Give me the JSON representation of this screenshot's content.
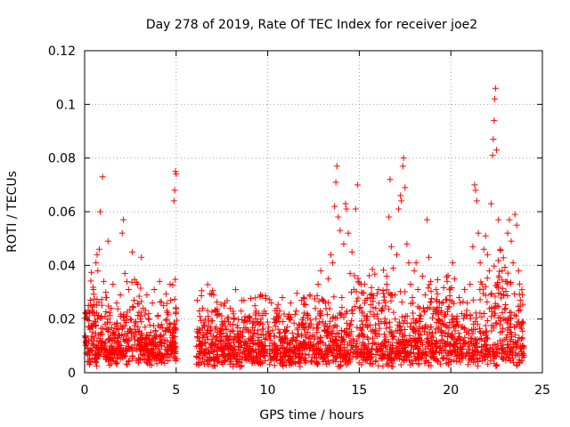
{
  "chart_data": {
    "type": "scatter",
    "title": "Day 278 of 2019, Rate Of TEC Index for receiver joe2",
    "xlabel": "GPS time / hours",
    "ylabel": "ROTI / TECUs",
    "xlim": [
      0,
      25
    ],
    "ylim": [
      0,
      0.12
    ],
    "x_ticks": [
      0,
      5,
      10,
      15,
      20,
      25
    ],
    "x_tick_labels": [
      "0",
      "5",
      "10",
      "15",
      "20",
      "25"
    ],
    "y_ticks": [
      0,
      0.02,
      0.04,
      0.06,
      0.08,
      0.1,
      0.12
    ],
    "y_tick_labels": [
      "0",
      "0.02",
      "0.04",
      "0.06",
      "0.08",
      "0.1",
      "0.12"
    ],
    "grid": true,
    "marker": "+",
    "marker_color": "#ff0000",
    "data_gap_hours": [
      5.05,
      6.1
    ],
    "series": [
      {
        "name": "ROTI",
        "points": [
          [
            0.05,
            0.013
          ],
          [
            0.1,
            0.022
          ],
          [
            0.18,
            0.009
          ],
          [
            0.25,
            0.017
          ],
          [
            0.32,
            0.027
          ],
          [
            0.4,
            0.011
          ],
          [
            0.48,
            0.031
          ],
          [
            0.55,
            0.019
          ],
          [
            0.62,
            0.041
          ],
          [
            0.68,
            0.044
          ],
          [
            0.72,
            0.038
          ],
          [
            0.8,
            0.046
          ],
          [
            0.85,
            0.06
          ],
          [
            0.9,
            0.015
          ],
          [
            0.98,
            0.073
          ],
          [
            1.05,
            0.034
          ],
          [
            1.12,
            0.021
          ],
          [
            1.2,
            0.028
          ],
          [
            1.28,
            0.049
          ],
          [
            1.35,
            0.012
          ],
          [
            1.45,
            0.024
          ],
          [
            1.55,
            0.033
          ],
          [
            1.65,
            0.018
          ],
          [
            1.75,
            0.026
          ],
          [
            1.85,
            0.014
          ],
          [
            1.95,
            0.029
          ],
          [
            2.05,
            0.052
          ],
          [
            2.12,
            0.057
          ],
          [
            2.2,
            0.037
          ],
          [
            2.3,
            0.021
          ],
          [
            2.4,
            0.031
          ],
          [
            2.5,
            0.016
          ],
          [
            2.6,
            0.045
          ],
          [
            2.7,
            0.027
          ],
          [
            2.8,
            0.019
          ],
          [
            2.9,
            0.033
          ],
          [
            3.0,
            0.012
          ],
          [
            3.1,
            0.043
          ],
          [
            3.2,
            0.024
          ],
          [
            3.3,
            0.017
          ],
          [
            3.4,
            0.029
          ],
          [
            3.5,
            0.022
          ],
          [
            3.6,
            0.011
          ],
          [
            3.7,
            0.026
          ],
          [
            3.8,
            0.031
          ],
          [
            3.9,
            0.014
          ],
          [
            4.0,
            0.021
          ],
          [
            4.1,
            0.034
          ],
          [
            4.2,
            0.018
          ],
          [
            4.3,
            0.025
          ],
          [
            4.4,
            0.012
          ],
          [
            4.5,
            0.023
          ],
          [
            4.6,
            0.016
          ],
          [
            4.7,
            0.027
          ],
          [
            4.8,
            0.008
          ],
          [
            4.88,
            0.064
          ],
          [
            4.92,
            0.068
          ],
          [
            4.96,
            0.075
          ],
          [
            5.0,
            0.074
          ],
          [
            6.15,
            0.027
          ],
          [
            6.3,
            0.015
          ],
          [
            6.45,
            0.024
          ],
          [
            6.6,
            0.011
          ],
          [
            6.75,
            0.021
          ],
          [
            6.9,
            0.017
          ],
          [
            7.05,
            0.029
          ],
          [
            7.2,
            0.013
          ],
          [
            7.35,
            0.022
          ],
          [
            7.5,
            0.019
          ],
          [
            7.65,
            0.026
          ],
          [
            7.8,
            0.012
          ],
          [
            7.95,
            0.024
          ],
          [
            8.1,
            0.018
          ],
          [
            8.25,
            0.031
          ],
          [
            8.4,
            0.014
          ],
          [
            8.55,
            0.023
          ],
          [
            8.7,
            0.027
          ],
          [
            8.85,
            0.016
          ],
          [
            9.0,
            0.021
          ],
          [
            9.15,
            0.012
          ],
          [
            9.3,
            0.025
          ],
          [
            9.45,
            0.019
          ],
          [
            9.6,
            0.029
          ],
          [
            9.75,
            0.014
          ],
          [
            9.9,
            0.022
          ],
          [
            10.05,
            0.017
          ],
          [
            10.2,
            0.026
          ],
          [
            10.35,
            0.011
          ],
          [
            10.5,
            0.024
          ],
          [
            10.65,
            0.019
          ],
          [
            10.8,
            0.028
          ],
          [
            10.95,
            0.015
          ],
          [
            11.1,
            0.021
          ],
          [
            11.25,
            0.026
          ],
          [
            11.4,
            0.013
          ],
          [
            11.55,
            0.023
          ],
          [
            11.7,
            0.018
          ],
          [
            11.85,
            0.027
          ],
          [
            12.0,
            0.016
          ],
          [
            12.15,
            0.022
          ],
          [
            12.3,
            0.029
          ],
          [
            12.45,
            0.014
          ],
          [
            12.6,
            0.024
          ],
          [
            12.75,
            0.033
          ],
          [
            12.9,
            0.038
          ],
          [
            13.0,
            0.019
          ],
          [
            13.15,
            0.026
          ],
          [
            13.3,
            0.035
          ],
          [
            13.45,
            0.044
          ],
          [
            13.55,
            0.041
          ],
          [
            13.65,
            0.062
          ],
          [
            13.72,
            0.071
          ],
          [
            13.78,
            0.077
          ],
          [
            13.85,
            0.058
          ],
          [
            13.95,
            0.053
          ],
          [
            14.05,
            0.028
          ],
          [
            14.15,
            0.048
          ],
          [
            14.25,
            0.063
          ],
          [
            14.3,
            0.061
          ],
          [
            14.4,
            0.052
          ],
          [
            14.5,
            0.037
          ],
          [
            14.6,
            0.045
          ],
          [
            14.7,
            0.031
          ],
          [
            14.8,
            0.061
          ],
          [
            14.9,
            0.07
          ],
          [
            15.0,
            0.024
          ],
          [
            15.1,
            0.033
          ],
          [
            15.2,
            0.017
          ],
          [
            15.3,
            0.026
          ],
          [
            15.45,
            0.021
          ],
          [
            15.6,
            0.029
          ],
          [
            15.75,
            0.016
          ],
          [
            15.9,
            0.024
          ],
          [
            16.05,
            0.031
          ],
          [
            16.2,
            0.019
          ],
          [
            16.35,
            0.027
          ],
          [
            16.5,
            0.036
          ],
          [
            16.62,
            0.058
          ],
          [
            16.68,
            0.072
          ],
          [
            16.75,
            0.047
          ],
          [
            16.85,
            0.039
          ],
          [
            16.95,
            0.029
          ],
          [
            17.05,
            0.044
          ],
          [
            17.15,
            0.061
          ],
          [
            17.25,
            0.066
          ],
          [
            17.3,
            0.064
          ],
          [
            17.38,
            0.077
          ],
          [
            17.42,
            0.08
          ],
          [
            17.5,
            0.069
          ],
          [
            17.6,
            0.048
          ],
          [
            17.7,
            0.041
          ],
          [
            17.8,
            0.033
          ],
          [
            17.9,
            0.028
          ],
          [
            18.0,
            0.038
          ],
          [
            18.1,
            0.041
          ],
          [
            18.2,
            0.031
          ],
          [
            18.3,
            0.024
          ],
          [
            18.45,
            0.036
          ],
          [
            18.6,
            0.029
          ],
          [
            18.7,
            0.057
          ],
          [
            18.8,
            0.043
          ],
          [
            18.9,
            0.034
          ],
          [
            19.05,
            0.022
          ],
          [
            19.2,
            0.031
          ],
          [
            19.35,
            0.017
          ],
          [
            19.5,
            0.026
          ],
          [
            19.65,
            0.021
          ],
          [
            19.8,
            0.034
          ],
          [
            19.95,
            0.027
          ],
          [
            20.1,
            0.041
          ],
          [
            20.2,
            0.035
          ],
          [
            20.3,
            0.019
          ],
          [
            20.45,
            0.028
          ],
          [
            20.6,
            0.022
          ],
          [
            20.75,
            0.031
          ],
          [
            20.9,
            0.026
          ],
          [
            21.05,
            0.033
          ],
          [
            21.2,
            0.047
          ],
          [
            21.3,
            0.07
          ],
          [
            21.35,
            0.068
          ],
          [
            21.42,
            0.064
          ],
          [
            21.5,
            0.052
          ],
          [
            21.6,
            0.041
          ],
          [
            21.7,
            0.033
          ],
          [
            21.8,
            0.046
          ],
          [
            21.9,
            0.051
          ],
          [
            22.0,
            0.044
          ],
          [
            22.1,
            0.038
          ],
          [
            22.2,
            0.063
          ],
          [
            22.28,
            0.081
          ],
          [
            22.32,
            0.087
          ],
          [
            22.36,
            0.094
          ],
          [
            22.4,
            0.102
          ],
          [
            22.44,
            0.106
          ],
          [
            22.5,
            0.083
          ],
          [
            22.6,
            0.057
          ],
          [
            22.7,
            0.046
          ],
          [
            22.8,
            0.038
          ],
          [
            22.9,
            0.029
          ],
          [
            23.0,
            0.034
          ],
          [
            23.1,
            0.052
          ],
          [
            23.2,
            0.057
          ],
          [
            23.3,
            0.049
          ],
          [
            23.4,
            0.041
          ],
          [
            23.5,
            0.059
          ],
          [
            23.6,
            0.055
          ],
          [
            23.7,
            0.038
          ],
          [
            23.8,
            0.027
          ],
          [
            23.9,
            0.019
          ]
        ]
      }
    ]
  }
}
